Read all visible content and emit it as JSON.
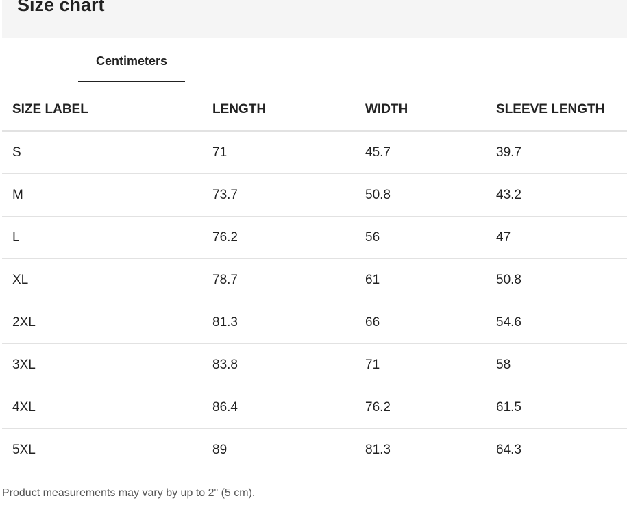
{
  "header": {
    "title": "Size chart"
  },
  "tabs": [
    {
      "label": "Centimeters"
    }
  ],
  "table": {
    "columns": [
      "SIZE LABEL",
      "LENGTH",
      "WIDTH",
      "SLEEVE LENGTH"
    ],
    "rows": [
      [
        "S",
        "71",
        "45.7",
        "39.7"
      ],
      [
        "M",
        "73.7",
        "50.8",
        "43.2"
      ],
      [
        "L",
        "76.2",
        "56",
        "47"
      ],
      [
        "XL",
        "78.7",
        "61",
        "50.8"
      ],
      [
        "2XL",
        "81.3",
        "66",
        "54.6"
      ],
      [
        "3XL",
        "83.8",
        "71",
        "58"
      ],
      [
        "4XL",
        "86.4",
        "76.2",
        "61.5"
      ],
      [
        "5XL",
        "89",
        "81.3",
        "64.3"
      ]
    ]
  },
  "footnote": "Product measurements may vary by up to 2\" (5 cm)."
}
